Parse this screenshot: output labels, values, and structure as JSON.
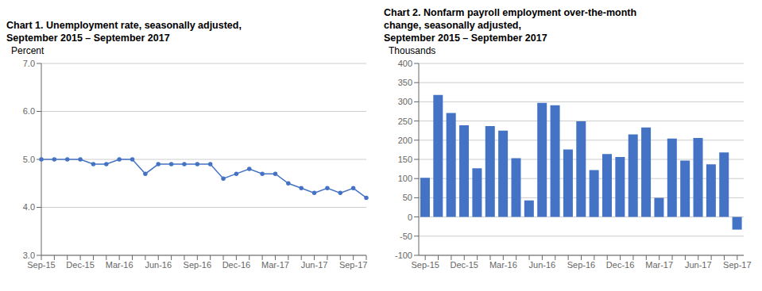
{
  "chart_data": [
    {
      "type": "line",
      "title": "Chart 1. Unemployment rate, seasonally adjusted,\nSeptember 2015 – September 2017",
      "y_label": "Percent",
      "categories": [
        "Sep-15",
        null,
        null,
        "Dec-15",
        null,
        null,
        "Mar-16",
        null,
        null,
        "Jun-16",
        null,
        null,
        "Sep-16",
        null,
        null,
        "Dec-16",
        null,
        null,
        "Mar-17",
        null,
        null,
        "Jun-17",
        null,
        null,
        "Sep-17",
        null
      ],
      "values": [
        5.0,
        5.0,
        5.0,
        5.0,
        4.9,
        4.9,
        5.0,
        5.0,
        4.7,
        4.9,
        4.9,
        4.9,
        4.9,
        4.9,
        4.6,
        4.7,
        4.8,
        4.7,
        4.7,
        4.5,
        4.4,
        4.3,
        4.4,
        4.3,
        4.4,
        4.2
      ],
      "color": "#4472C4",
      "marker": "circle",
      "ylim": [
        3.0,
        7.0
      ],
      "yticks": [
        {
          "value": 3.0,
          "label": "3.0"
        },
        {
          "value": 4.0,
          "label": "4.0"
        },
        {
          "value": 5.0,
          "label": "5.0"
        },
        {
          "value": 6.0,
          "label": "6.0"
        },
        {
          "value": 7.0,
          "label": "7.0"
        }
      ],
      "grid": true
    },
    {
      "type": "bar",
      "title": "Chart 2. Nonfarm payroll employment over-the-month\nchange, seasonally adjusted,\nSeptember 2015 – September 2017",
      "y_label": "Thousands",
      "categories": [
        "Sep-15",
        null,
        null,
        "Dec-15",
        null,
        null,
        "Mar-16",
        null,
        null,
        "Jun-16",
        null,
        null,
        "Sep-16",
        null,
        null,
        "Dec-16",
        null,
        null,
        "Mar-17",
        null,
        null,
        "Jun-17",
        null,
        null,
        "Sep-17"
      ],
      "values": [
        102,
        318,
        271,
        239,
        127,
        237,
        225,
        153,
        43,
        297,
        291,
        176,
        249,
        122,
        164,
        156,
        215,
        233,
        50,
        204,
        147,
        206,
        137,
        168,
        -33
      ],
      "color": "#4472C4",
      "ylim": [
        -100,
        400
      ],
      "yticks": [
        -100,
        -50,
        0,
        50,
        100,
        150,
        200,
        250,
        300,
        350,
        400
      ],
      "grid": true
    }
  ]
}
